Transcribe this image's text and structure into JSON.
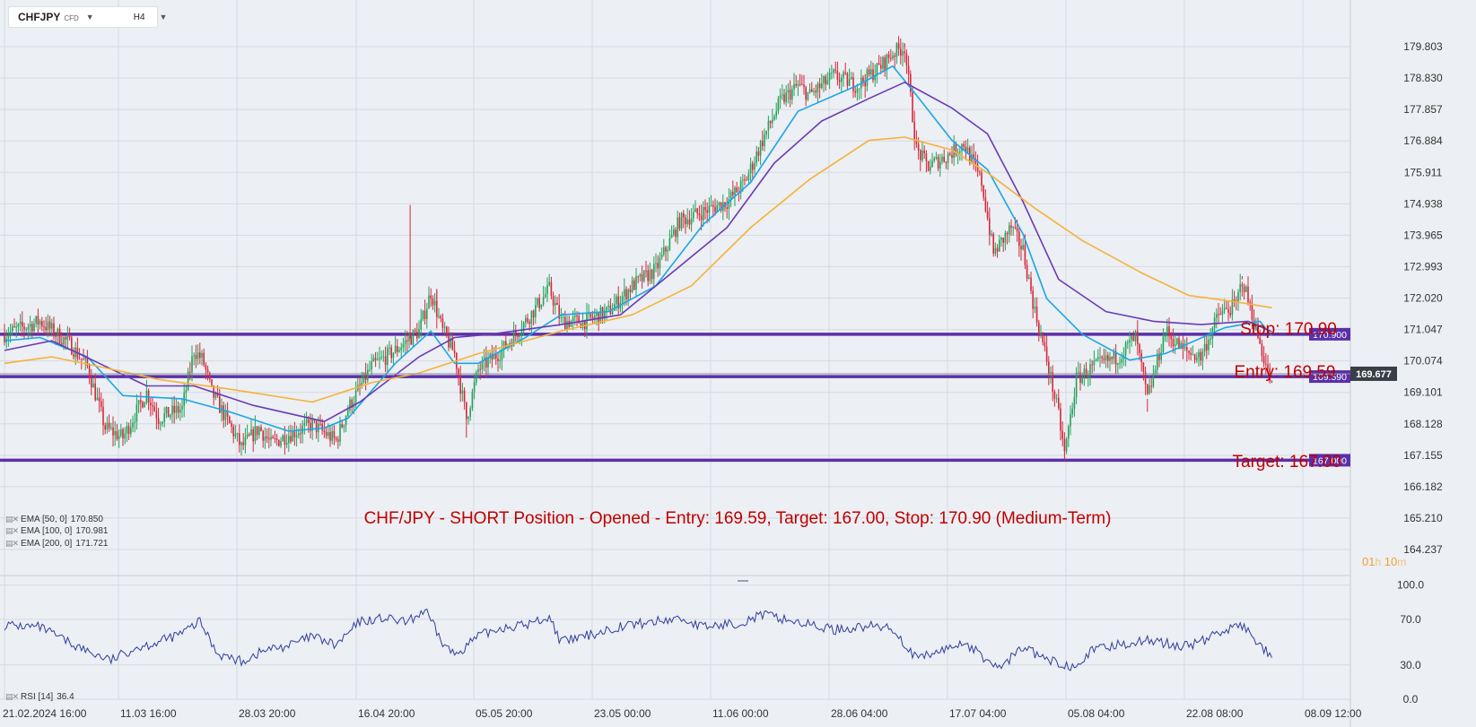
{
  "toolbar": {
    "symbol": "CHFJPY",
    "instrument_type": "CFD",
    "interval": "H4"
  },
  "colors": {
    "up": "#22a35a",
    "down": "#d8263a",
    "ema50": "#1aa6e6",
    "ema100": "#6a3bb5",
    "ema200": "#f5b23a",
    "level": "#5b2fa8",
    "rsi": "#2f3d9c",
    "annotation": "#c00000",
    "grid": "#d6dae0",
    "axis_text": "#333333",
    "current": "#3a3f47"
  },
  "indicators": [
    {
      "label": "EMA [50, 0]",
      "value": "170.850",
      "icon": "settings-close-icon"
    },
    {
      "label": "EMA [100, 0]",
      "value": "170.981",
      "icon": "settings-close-icon"
    },
    {
      "label": "EMA [200, 0]",
      "value": "171.721",
      "icon": "settings-close-icon"
    }
  ],
  "rsi_legend": {
    "label": "RSI [14]",
    "value": "36.4",
    "icon": "settings-close-icon"
  },
  "timer": {
    "hours": "01",
    "h_unit": "h",
    "minutes": "10",
    "m_unit": "m"
  },
  "chart_data": {
    "type": "candlestick",
    "symbol": "CHFJPY",
    "interval": "H4",
    "x_tick_labels": [
      "21.02.2024  16:00",
      "11.03  16:00",
      "28.03  20:00",
      "16.04  20:00",
      "05.05  20:00",
      "23.05  00:00",
      "11.06  00:00",
      "28.06  04:00",
      "17.07  04:00",
      "05.08  04:00",
      "22.08  08:00",
      "08.09  12:00"
    ],
    "y_tick_labels": [
      "179.803",
      "178.830",
      "177.857",
      "176.884",
      "175.911",
      "174.938",
      "173.965",
      "172.993",
      "172.020",
      "171.047",
      "170.074",
      "169.101",
      "168.128",
      "167.155",
      "166.182",
      "165.210",
      "164.237"
    ],
    "ylim": [
      164.237,
      179.803
    ],
    "price_path": [
      [
        0,
        170.9
      ],
      [
        6,
        171.3
      ],
      [
        11,
        170.6
      ],
      [
        14,
        169.9
      ],
      [
        17,
        168.0
      ],
      [
        20,
        167.7
      ],
      [
        24,
        169.1
      ],
      [
        26,
        168.3
      ],
      [
        30,
        168.6
      ],
      [
        32,
        170.4
      ],
      [
        33.5,
        170.1
      ],
      [
        35,
        169.1
      ],
      [
        38,
        168.1
      ],
      [
        40,
        167.4
      ],
      [
        43,
        168.0
      ],
      [
        45,
        167.5
      ],
      [
        48,
        167.8
      ],
      [
        52,
        168.1
      ],
      [
        56,
        167.6
      ],
      [
        58,
        168.6
      ],
      [
        62,
        169.9
      ],
      [
        66,
        170.4
      ],
      [
        70,
        171.0
      ],
      [
        72,
        172.2
      ],
      [
        74,
        171.0
      ],
      [
        76,
        170.3
      ],
      [
        78,
        168.3
      ],
      [
        80,
        169.8
      ],
      [
        84,
        170.4
      ],
      [
        88,
        171.3
      ],
      [
        92,
        172.3
      ],
      [
        94,
        171.3
      ],
      [
        98,
        171.3
      ],
      [
        102,
        171.6
      ],
      [
        106,
        172.4
      ],
      [
        110,
        172.9
      ],
      [
        114,
        174.4
      ],
      [
        118,
        174.7
      ],
      [
        122,
        175.0
      ],
      [
        125,
        175.6
      ],
      [
        128,
        176.9
      ],
      [
        131,
        178.1
      ],
      [
        134,
        178.6
      ],
      [
        136,
        178.3
      ],
      [
        140,
        178.9
      ],
      [
        144,
        178.6
      ],
      [
        148,
        179.2
      ],
      [
        150,
        179.6
      ],
      [
        152,
        179.8
      ],
      [
        154,
        176.6
      ],
      [
        156,
        176.1
      ],
      [
        159,
        176.4
      ],
      [
        162,
        176.8
      ],
      [
        165,
        175.6
      ],
      [
        167,
        173.4
      ],
      [
        170,
        174.2
      ],
      [
        172,
        173.5
      ],
      [
        174,
        171.6
      ],
      [
        176,
        170.1
      ],
      [
        178,
        168.4
      ],
      [
        179,
        167.2
      ],
      [
        181,
        169.5
      ],
      [
        184,
        169.9
      ],
      [
        188,
        170.2
      ],
      [
        191,
        170.8
      ],
      [
        193,
        168.9
      ],
      [
        196,
        171.0
      ],
      [
        199,
        170.4
      ],
      [
        202,
        170.2
      ],
      [
        205,
        171.5
      ],
      [
        208,
        171.8
      ],
      [
        209,
        172.6
      ],
      [
        211,
        171.3
      ],
      [
        212,
        170.6
      ],
      [
        214,
        169.3
      ]
    ],
    "series": [
      {
        "name": "EMA [50, 0]",
        "last": 170.85,
        "path": [
          [
            0,
            170.7
          ],
          [
            6,
            170.8
          ],
          [
            14,
            170.2
          ],
          [
            20,
            169.0
          ],
          [
            30,
            168.9
          ],
          [
            38,
            168.5
          ],
          [
            48,
            167.9
          ],
          [
            54,
            168.0
          ],
          [
            58,
            168.3
          ],
          [
            66,
            170.0
          ],
          [
            72,
            171.0
          ],
          [
            76,
            170.0
          ],
          [
            80,
            170.0
          ],
          [
            88,
            170.8
          ],
          [
            94,
            171.5
          ],
          [
            102,
            171.6
          ],
          [
            110,
            172.4
          ],
          [
            118,
            174.3
          ],
          [
            126,
            175.6
          ],
          [
            134,
            177.8
          ],
          [
            144,
            178.6
          ],
          [
            150,
            179.2
          ],
          [
            154,
            178.3
          ],
          [
            160,
            176.9
          ],
          [
            166,
            176.0
          ],
          [
            172,
            174.0
          ],
          [
            176,
            172.0
          ],
          [
            182,
            170.9
          ],
          [
            190,
            170.1
          ],
          [
            196,
            170.3
          ],
          [
            206,
            171.1
          ],
          [
            212,
            171.3
          ],
          [
            214,
            170.85
          ]
        ]
      },
      {
        "name": "EMA [100, 0]",
        "last": 170.981,
        "path": [
          [
            0,
            170.4
          ],
          [
            8,
            170.7
          ],
          [
            16,
            170.0
          ],
          [
            24,
            169.3
          ],
          [
            32,
            169.3
          ],
          [
            42,
            168.7
          ],
          [
            54,
            168.2
          ],
          [
            60,
            168.8
          ],
          [
            70,
            170.2
          ],
          [
            76,
            170.8
          ],
          [
            82,
            170.9
          ],
          [
            94,
            171.2
          ],
          [
            104,
            171.5
          ],
          [
            114,
            173.0
          ],
          [
            122,
            174.2
          ],
          [
            130,
            176.2
          ],
          [
            138,
            177.5
          ],
          [
            146,
            178.2
          ],
          [
            152,
            178.7
          ],
          [
            160,
            177.9
          ],
          [
            166,
            177.1
          ],
          [
            172,
            175.0
          ],
          [
            178,
            172.6
          ],
          [
            186,
            171.6
          ],
          [
            194,
            171.3
          ],
          [
            202,
            171.2
          ],
          [
            210,
            171.3
          ],
          [
            214,
            170.98
          ]
        ]
      },
      {
        "name": "EMA [200, 0]",
        "last": 171.721,
        "path": [
          [
            0,
            170.0
          ],
          [
            8,
            170.2
          ],
          [
            16,
            169.9
          ],
          [
            26,
            169.5
          ],
          [
            38,
            169.2
          ],
          [
            52,
            168.8
          ],
          [
            62,
            169.4
          ],
          [
            70,
            169.7
          ],
          [
            80,
            170.3
          ],
          [
            94,
            171.0
          ],
          [
            106,
            171.5
          ],
          [
            116,
            172.4
          ],
          [
            126,
            174.2
          ],
          [
            136,
            175.7
          ],
          [
            146,
            176.9
          ],
          [
            152,
            177.0
          ],
          [
            160,
            176.6
          ],
          [
            166,
            175.9
          ],
          [
            174,
            174.8
          ],
          [
            182,
            173.8
          ],
          [
            192,
            172.8
          ],
          [
            200,
            172.1
          ],
          [
            208,
            171.9
          ],
          [
            214,
            171.72
          ]
        ]
      }
    ],
    "levels": [
      {
        "name": "Stop",
        "value": 170.9,
        "label": "170.900",
        "annotation": "Stop: 170.90"
      },
      {
        "name": "Entry",
        "value": 169.59,
        "label": "169.590",
        "annotation": "Entry: 169.59"
      },
      {
        "name": "Target",
        "value": 167.0,
        "label": "167.000",
        "annotation": "Target: 167.00"
      }
    ],
    "current_price": {
      "value": 169.677,
      "label": "169.677"
    },
    "annotation": "CHF/JPY - SHORT Position - Opened - Entry: 169.59, Target: 167.00, Stop: 170.90 (Medium-Term)",
    "rsi": {
      "name": "RSI [14]",
      "last": 36.4,
      "y_tick_labels": [
        "100.0",
        "70.0",
        "30.0",
        "0.0"
      ],
      "ylim": [
        0,
        100
      ],
      "path": [
        [
          0,
          65
        ],
        [
          6,
          63
        ],
        [
          10,
          52
        ],
        [
          14,
          42
        ],
        [
          18,
          34
        ],
        [
          22,
          45
        ],
        [
          26,
          50
        ],
        [
          30,
          58
        ],
        [
          33,
          68
        ],
        [
          36,
          40
        ],
        [
          40,
          33
        ],
        [
          44,
          43
        ],
        [
          48,
          47
        ],
        [
          52,
          55
        ],
        [
          56,
          47
        ],
        [
          60,
          68
        ],
        [
          64,
          71
        ],
        [
          68,
          67
        ],
        [
          71,
          78
        ],
        [
          74,
          49
        ],
        [
          76,
          39
        ],
        [
          80,
          55
        ],
        [
          84,
          63
        ],
        [
          88,
          65
        ],
        [
          92,
          72
        ],
        [
          94,
          50
        ],
        [
          98,
          55
        ],
        [
          104,
          64
        ],
        [
          110,
          68
        ],
        [
          114,
          71
        ],
        [
          118,
          63
        ],
        [
          124,
          67
        ],
        [
          128,
          74
        ],
        [
          132,
          70
        ],
        [
          136,
          65
        ],
        [
          140,
          61
        ],
        [
          146,
          64
        ],
        [
          150,
          62
        ],
        [
          154,
          35
        ],
        [
          158,
          42
        ],
        [
          162,
          50
        ],
        [
          166,
          34
        ],
        [
          168,
          27
        ],
        [
          172,
          46
        ],
        [
          176,
          34
        ],
        [
          180,
          29
        ],
        [
          184,
          43
        ],
        [
          188,
          48
        ],
        [
          194,
          52
        ],
        [
          198,
          46
        ],
        [
          202,
          50
        ],
        [
          206,
          61
        ],
        [
          209,
          64
        ],
        [
          212,
          48
        ],
        [
          214,
          36.4
        ]
      ]
    }
  }
}
